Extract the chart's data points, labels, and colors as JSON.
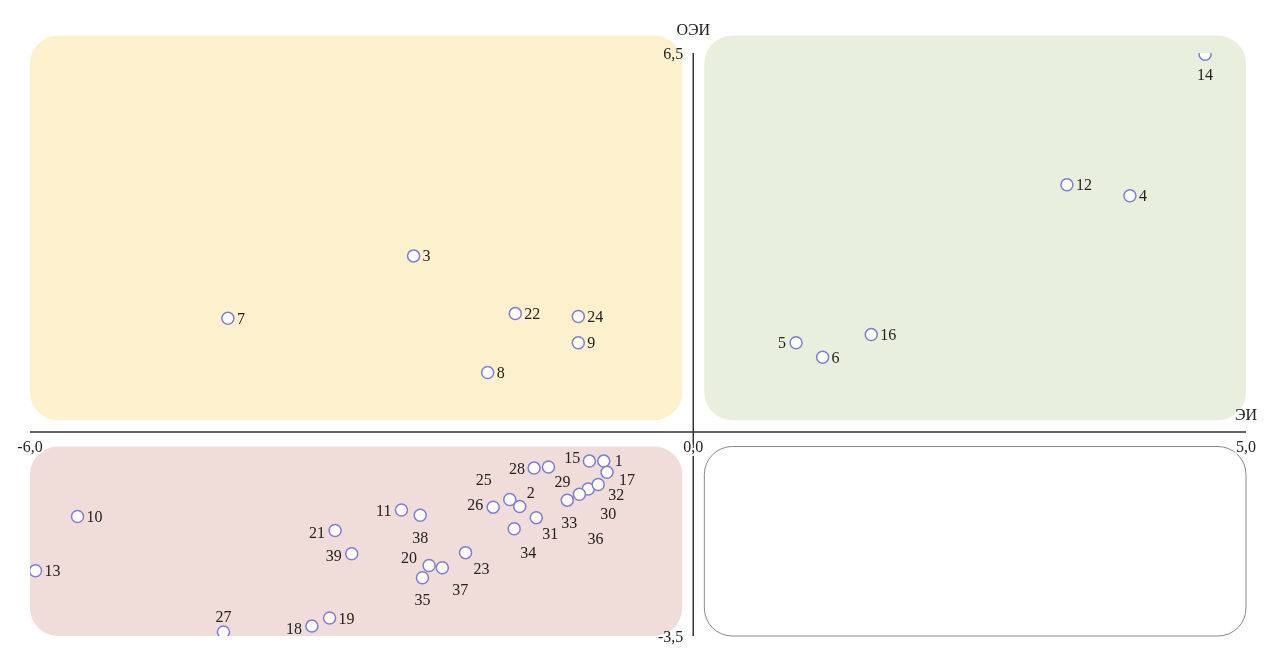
{
  "chart_data": {
    "type": "scatter",
    "xlabel": "ЭИ",
    "ylabel": "ОЭИ",
    "xlim": [
      -6,
      5
    ],
    "ylim": [
      -3.5,
      6.5
    ],
    "xticks": [
      {
        "value": -6,
        "label": "-6,0"
      },
      {
        "value": 0,
        "label": "0,0"
      },
      {
        "value": 5,
        "label": "5,0"
      }
    ],
    "yticks": [
      {
        "value": 6.5,
        "label": "6,5"
      },
      {
        "value": -3.5,
        "label": "-3,5"
      }
    ],
    "marker": "circle",
    "series": [
      {
        "color": "#7b7fd6",
        "x": [
          -0.81,
          -1.57,
          -2.53,
          3.95,
          0.93,
          1.17,
          -4.21,
          -1.86,
          -1.04,
          -5.57,
          -2.64,
          3.38,
          -5.95,
          4.63,
          -0.94,
          1.61,
          -0.78,
          -3.45,
          -3.29,
          -2.39,
          -3.24,
          -1.61,
          -2.06,
          -1.04,
          -1.66,
          -1.81,
          -4.25,
          -1.44,
          -1.31,
          -0.95,
          -1.42,
          -0.86,
          -1.14,
          -1.62,
          -2.45,
          -1.03,
          -2.27,
          -2.47,
          -3.09
        ],
        "values": [
          -0.5,
          -1.28,
          3.02,
          4.05,
          1.53,
          1.28,
          1.95,
          1.02,
          1.53,
          -1.45,
          -1.34,
          4.24,
          -2.38,
          6.48,
          -0.5,
          1.67,
          -0.69,
          -3.33,
          -3.19,
          -2.29,
          -1.69,
          2.03,
          -2.07,
          1.98,
          -1.16,
          -1.29,
          -3.43,
          -0.62,
          -0.6,
          -0.98,
          -1.47,
          -0.9,
          -1.17,
          -1.66,
          -2.5,
          -1.07,
          -2.33,
          -1.43,
          -2.09
        ]
      }
    ],
    "annotations": [
      {
        "text": "1",
        "x": -0.81,
        "y": -0.5
      },
      {
        "text": "2",
        "x": -1.57,
        "y": -1.28
      },
      {
        "text": "3",
        "x": -2.53,
        "y": 3.02
      },
      {
        "text": "4",
        "x": 3.95,
        "y": 4.05
      },
      {
        "text": "5",
        "x": 0.93,
        "y": 1.53
      },
      {
        "text": "6",
        "x": 1.17,
        "y": 1.28
      },
      {
        "text": "7",
        "x": -4.21,
        "y": 1.95
      },
      {
        "text": "8",
        "x": -1.86,
        "y": 1.02
      },
      {
        "text": "9",
        "x": -1.04,
        "y": 1.53
      },
      {
        "text": "10",
        "x": -5.57,
        "y": -1.45
      },
      {
        "text": "11",
        "x": -2.64,
        "y": -1.34
      },
      {
        "text": "12",
        "x": 3.38,
        "y": 4.24
      },
      {
        "text": "13",
        "x": -5.95,
        "y": -2.38
      },
      {
        "text": "14",
        "x": 4.63,
        "y": 6.48
      },
      {
        "text": "15",
        "x": -0.94,
        "y": -0.5
      },
      {
        "text": "16",
        "x": 1.61,
        "y": 1.67
      },
      {
        "text": "17",
        "x": -0.78,
        "y": -0.69
      },
      {
        "text": "18",
        "x": -3.45,
        "y": -3.33
      },
      {
        "text": "19",
        "x": -3.29,
        "y": -3.19
      },
      {
        "text": "20",
        "x": -2.39,
        "y": -2.29
      },
      {
        "text": "21",
        "x": -3.24,
        "y": -1.69
      },
      {
        "text": "22",
        "x": -1.61,
        "y": 2.03
      },
      {
        "text": "23",
        "x": -2.06,
        "y": -2.07
      },
      {
        "text": "24",
        "x": -1.04,
        "y": 1.98
      },
      {
        "text": "25",
        "x": -1.66,
        "y": -1.16
      },
      {
        "text": "26",
        "x": -1.81,
        "y": -1.29
      },
      {
        "text": "27",
        "x": -4.25,
        "y": -3.43
      },
      {
        "text": "28",
        "x": -1.44,
        "y": -0.62
      },
      {
        "text": "29",
        "x": -1.31,
        "y": -0.6
      },
      {
        "text": "30",
        "x": -0.95,
        "y": -0.98
      },
      {
        "text": "31",
        "x": -1.42,
        "y": -1.47
      },
      {
        "text": "32",
        "x": -0.86,
        "y": -0.9
      },
      {
        "text": "33",
        "x": -1.14,
        "y": -1.17
      },
      {
        "text": "34",
        "x": -1.62,
        "y": -1.66
      },
      {
        "text": "35",
        "x": -2.45,
        "y": -2.5
      },
      {
        "text": "36",
        "x": -1.03,
        "y": -1.07
      },
      {
        "text": "37",
        "x": -2.27,
        "y": -2.33
      },
      {
        "text": "38",
        "x": -2.47,
        "y": -1.43
      },
      {
        "text": "39",
        "x": -3.09,
        "y": -2.09
      }
    ]
  }
}
